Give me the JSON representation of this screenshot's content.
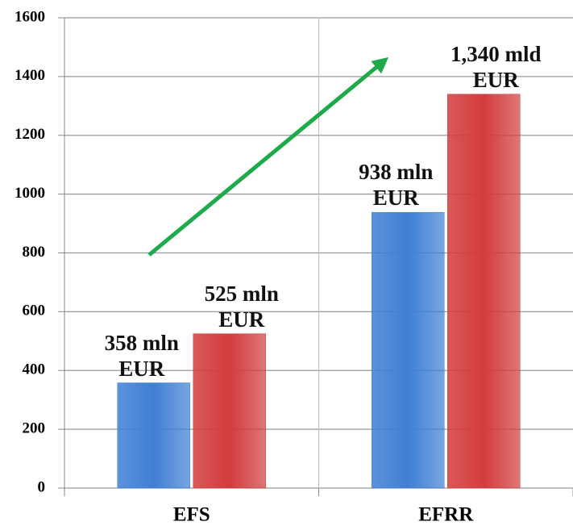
{
  "chart_data": {
    "type": "bar",
    "categories": [
      "EFS",
      "EFRR"
    ],
    "series": [
      {
        "color": "#3f7fd4",
        "values": [
          358,
          938
        ],
        "value_labels": [
          "358 mln EUR",
          "938 mln EUR"
        ]
      },
      {
        "color": "#d23c3c",
        "values": [
          525,
          1340
        ],
        "value_labels": [
          "525 mln EUR",
          "1,340 mld EUR"
        ]
      }
    ],
    "ylim": [
      0,
      1600
    ],
    "yticks": [
      0,
      200,
      400,
      600,
      800,
      1000,
      1200,
      1400,
      1600
    ],
    "grid": true
  }
}
